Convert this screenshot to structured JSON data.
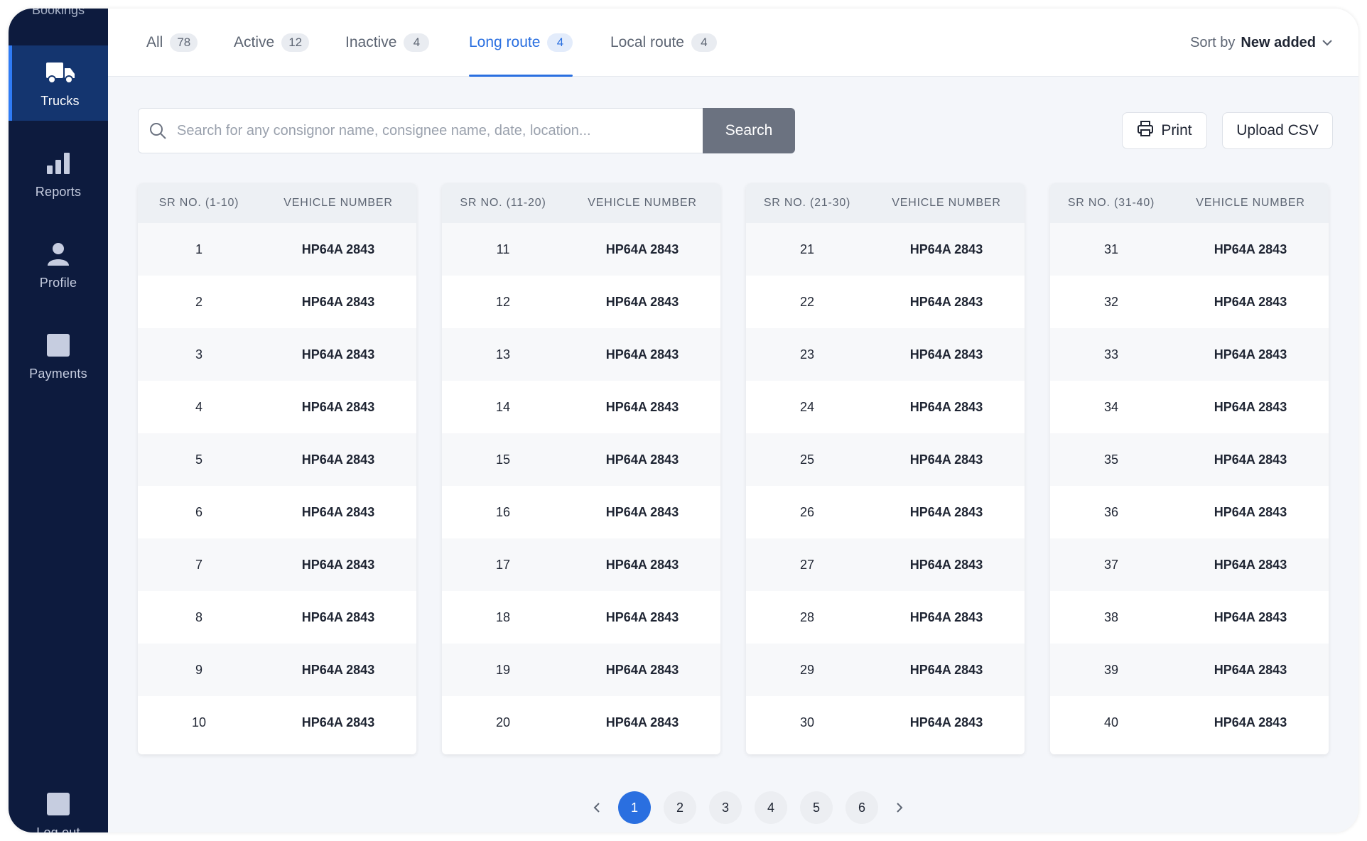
{
  "sidebar": {
    "top_cut_label": "Bookings",
    "items": [
      {
        "label": "Trucks",
        "icon": "truck-icon"
      },
      {
        "label": "Reports",
        "icon": "bar-chart-icon"
      },
      {
        "label": "Profile",
        "icon": "user-icon"
      },
      {
        "label": "Payments",
        "icon": "payments-icon"
      }
    ],
    "logout_label": "Log out"
  },
  "tabs": [
    {
      "label": "All",
      "count": "78"
    },
    {
      "label": "Active",
      "count": "12"
    },
    {
      "label": "Inactive",
      "count": "4"
    },
    {
      "label": "Long route",
      "count": "4"
    },
    {
      "label": "Local route",
      "count": "4"
    }
  ],
  "active_tab": "Long route",
  "sort": {
    "label": "Sort by",
    "value": "New added"
  },
  "search": {
    "placeholder": "Search for any consignor name, consignee name, date, location...",
    "value": "",
    "button_label": "Search"
  },
  "actions": {
    "print_label": "Print",
    "upload_label": "Upload CSV"
  },
  "tables": [
    {
      "sr_header": "SR NO. (1-10)",
      "vehicle_header": "VEHICLE NUMBER",
      "rows": [
        {
          "sr": "1",
          "vehicle": "HP64A 2843"
        },
        {
          "sr": "2",
          "vehicle": "HP64A 2843"
        },
        {
          "sr": "3",
          "vehicle": "HP64A 2843"
        },
        {
          "sr": "4",
          "vehicle": "HP64A 2843"
        },
        {
          "sr": "5",
          "vehicle": "HP64A 2843"
        },
        {
          "sr": "6",
          "vehicle": "HP64A 2843"
        },
        {
          "sr": "7",
          "vehicle": "HP64A 2843"
        },
        {
          "sr": "8",
          "vehicle": "HP64A 2843"
        },
        {
          "sr": "9",
          "vehicle": "HP64A 2843"
        },
        {
          "sr": "10",
          "vehicle": "HP64A 2843"
        }
      ]
    },
    {
      "sr_header": "SR NO. (11-20)",
      "vehicle_header": "VEHICLE NUMBER",
      "rows": [
        {
          "sr": "11",
          "vehicle": "HP64A 2843"
        },
        {
          "sr": "12",
          "vehicle": "HP64A 2843"
        },
        {
          "sr": "13",
          "vehicle": "HP64A 2843"
        },
        {
          "sr": "14",
          "vehicle": "HP64A 2843"
        },
        {
          "sr": "15",
          "vehicle": "HP64A 2843"
        },
        {
          "sr": "16",
          "vehicle": "HP64A 2843"
        },
        {
          "sr": "17",
          "vehicle": "HP64A 2843"
        },
        {
          "sr": "18",
          "vehicle": "HP64A 2843"
        },
        {
          "sr": "19",
          "vehicle": "HP64A 2843"
        },
        {
          "sr": "20",
          "vehicle": "HP64A 2843"
        }
      ]
    },
    {
      "sr_header": "SR NO. (21-30)",
      "vehicle_header": "VEHICLE NUMBER",
      "rows": [
        {
          "sr": "21",
          "vehicle": "HP64A 2843"
        },
        {
          "sr": "22",
          "vehicle": "HP64A 2843"
        },
        {
          "sr": "23",
          "vehicle": "HP64A 2843"
        },
        {
          "sr": "24",
          "vehicle": "HP64A 2843"
        },
        {
          "sr": "25",
          "vehicle": "HP64A 2843"
        },
        {
          "sr": "26",
          "vehicle": "HP64A 2843"
        },
        {
          "sr": "27",
          "vehicle": "HP64A 2843"
        },
        {
          "sr": "28",
          "vehicle": "HP64A 2843"
        },
        {
          "sr": "29",
          "vehicle": "HP64A 2843"
        },
        {
          "sr": "30",
          "vehicle": "HP64A 2843"
        }
      ]
    },
    {
      "sr_header": "SR NO. (31-40)",
      "vehicle_header": "VEHICLE NUMBER",
      "rows": [
        {
          "sr": "31",
          "vehicle": "HP64A 2843"
        },
        {
          "sr": "32",
          "vehicle": "HP64A 2843"
        },
        {
          "sr": "33",
          "vehicle": "HP64A 2843"
        },
        {
          "sr": "34",
          "vehicle": "HP64A 2843"
        },
        {
          "sr": "35",
          "vehicle": "HP64A 2843"
        },
        {
          "sr": "36",
          "vehicle": "HP64A 2843"
        },
        {
          "sr": "37",
          "vehicle": "HP64A 2843"
        },
        {
          "sr": "38",
          "vehicle": "HP64A 2843"
        },
        {
          "sr": "39",
          "vehicle": "HP64A 2843"
        },
        {
          "sr": "40",
          "vehicle": "HP64A 2843"
        }
      ]
    }
  ],
  "pagination": {
    "pages": [
      "1",
      "2",
      "3",
      "4",
      "5",
      "6"
    ],
    "current": "1"
  },
  "colors": {
    "sidebar_bg": "#0d1b3e",
    "sidebar_active_bg": "#14356f",
    "accent": "#2a6fe0",
    "search_button": "#6b7280"
  }
}
